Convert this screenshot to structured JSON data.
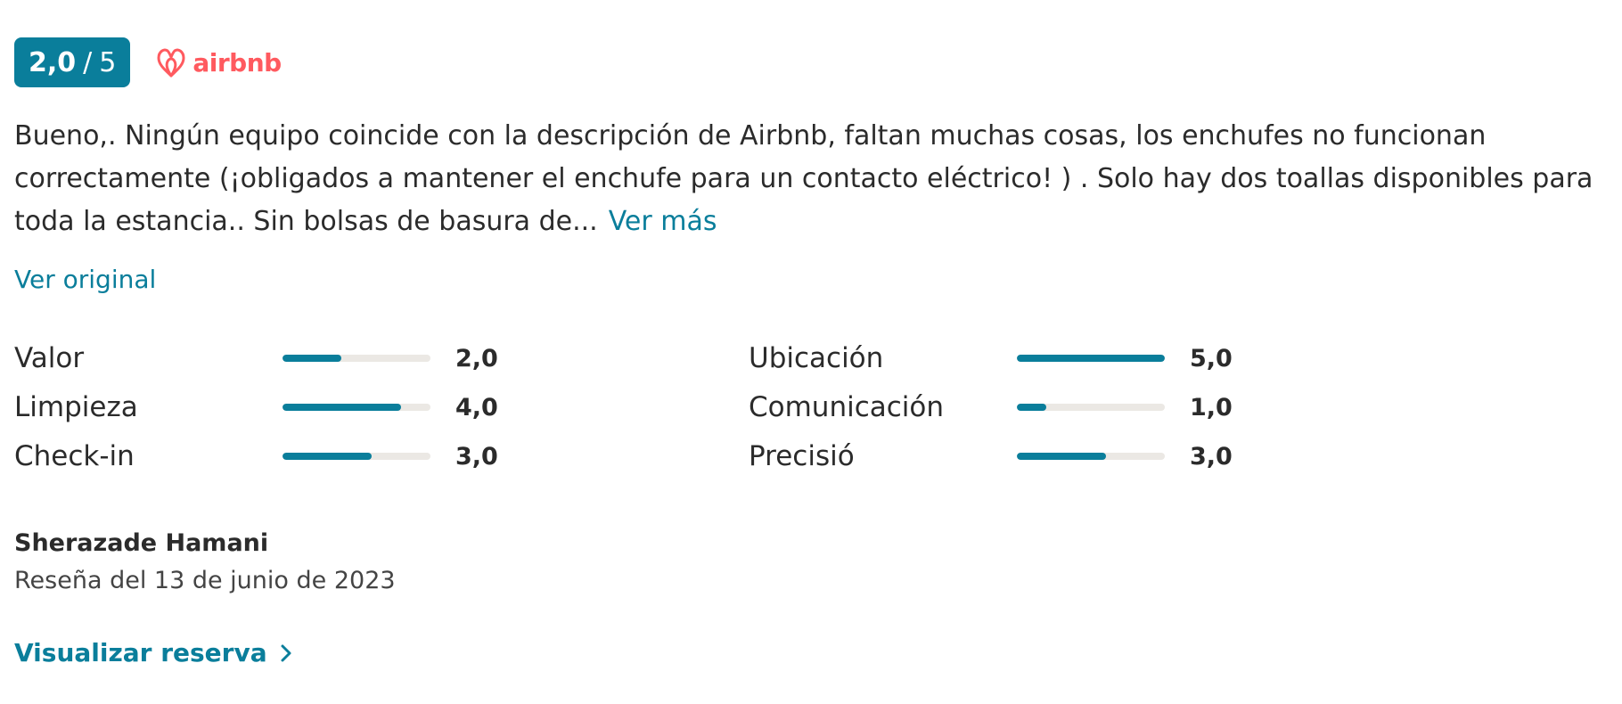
{
  "score": {
    "value": "2,0",
    "separator": "/",
    "max": "5"
  },
  "brand": {
    "name": "airbnb",
    "icon": "airbnb-logo-icon",
    "color": "#ff5a5f"
  },
  "review": {
    "text": "Bueno,. Ningún equipo coincide con la descripción de Airbnb, faltan muchas cosas, los enchufes no funcionan correctamente (¡obligados a mantener el enchufe para un contacto eléctrico! ) . Solo hay dos toallas disponibles para toda la estancia.. Sin bolsas de basura de...",
    "read_more_label": "Ver más",
    "see_original_label": "Ver original"
  },
  "ratings": [
    {
      "label": "Valor",
      "value": "2,0",
      "fraction": 0.4
    },
    {
      "label": "Limpieza",
      "value": "4,0",
      "fraction": 0.8
    },
    {
      "label": "Check-in",
      "value": "3,0",
      "fraction": 0.6
    },
    {
      "label": "Ubicación",
      "value": "5,0",
      "fraction": 1.0
    },
    {
      "label": "Comunicación",
      "value": "1,0",
      "fraction": 0.2
    },
    {
      "label": "Precisió",
      "value": "3,0",
      "fraction": 0.6
    }
  ],
  "author": {
    "name": "Sherazade Hamani",
    "date": "Reseña del 13 de junio de 2023"
  },
  "actions": {
    "view_booking_label": "Visualizar reserva",
    "view_booking_icon": "chevron-right-icon"
  },
  "colors": {
    "accent": "#0a7e9b",
    "track": "#ebe8e4"
  }
}
